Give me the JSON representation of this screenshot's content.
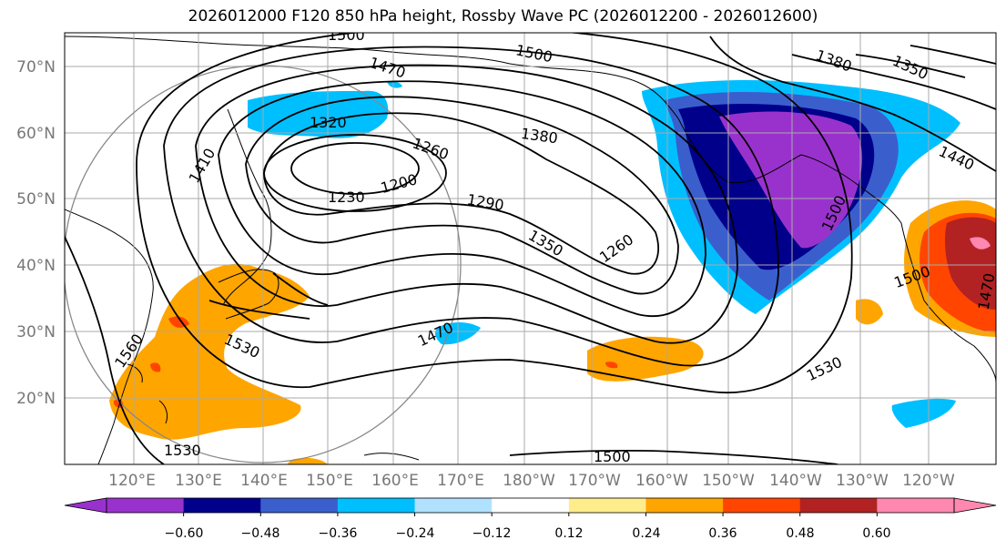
{
  "title": "2026012000 F120 850 hPa height, Rossby Wave PC (2026012200 - 2026012600)",
  "map": {
    "lat_ticks": [
      "70°N",
      "60°N",
      "50°N",
      "40°N",
      "30°N",
      "20°N"
    ],
    "lon_ticks": [
      "120°E",
      "130°E",
      "140°E",
      "150°E",
      "160°E",
      "170°E",
      "180°W",
      "170°W",
      "160°W",
      "150°W",
      "140°W",
      "130°W",
      "120°W"
    ],
    "contour_labels": [
      "1500",
      "1470",
      "1500",
      "1410",
      "1320",
      "1260",
      "1380",
      "1380",
      "1350",
      "1230",
      "1200",
      "1290",
      "1350",
      "1260",
      "1500",
      "1440",
      "1500",
      "1470",
      "1530",
      "1530",
      "1560",
      "1530",
      "1500",
      "1470"
    ]
  },
  "colorbar": {
    "colors": [
      "#9932cc",
      "#00008b",
      "#3a5fcd",
      "#00bfff",
      "#b0e2ff",
      "#ffffff",
      "#ffec8b",
      "#ffa500",
      "#ff4500",
      "#b22222",
      "#ff88b0"
    ],
    "tick_labels": [
      "−0.60",
      "−0.48",
      "−0.36",
      "−0.24",
      "−0.12",
      "0.12",
      "0.24",
      "0.36",
      "0.48",
      "0.60"
    ]
  }
}
